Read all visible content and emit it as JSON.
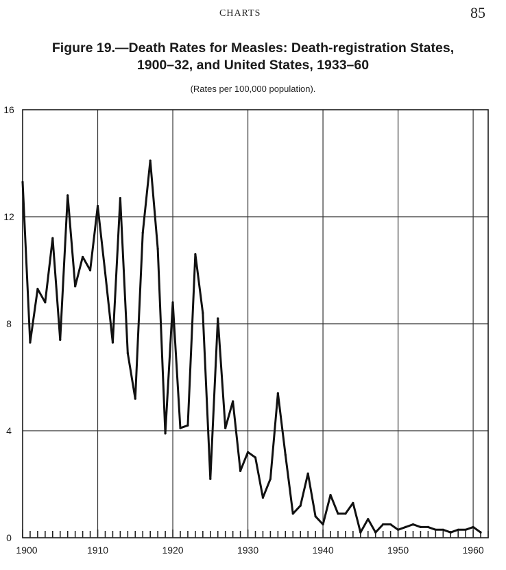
{
  "header": {
    "section_name": "CHARTS",
    "page_number": "85"
  },
  "figure": {
    "title_line1": "Figure 19.—Death Rates for Measles:  Death-registration States,",
    "title_line2": "1900–32, and United States, 1933–60",
    "subtitle": "(Rates per 100,000 population)."
  },
  "chart_data": {
    "type": "line",
    "title": "Figure 19.—Death Rates for Measles:  Death-registration States, 1900–32, and United States, 1933–60",
    "subtitle": "(Rates per 100,000 population).",
    "xlabel": "",
    "ylabel": "",
    "xlim": [
      1900,
      1962
    ],
    "ylim": [
      0,
      16
    ],
    "x_ticks": [
      1900,
      1910,
      1920,
      1930,
      1940,
      1950,
      1960
    ],
    "y_ticks": [
      0,
      4,
      8,
      12,
      16
    ],
    "grid": true,
    "legend": "none",
    "x": [
      1900,
      1901,
      1902,
      1903,
      1904,
      1905,
      1906,
      1907,
      1908,
      1909,
      1910,
      1911,
      1912,
      1913,
      1914,
      1915,
      1916,
      1917,
      1918,
      1919,
      1920,
      1921,
      1922,
      1923,
      1924,
      1925,
      1926,
      1927,
      1928,
      1929,
      1930,
      1931,
      1932,
      1933,
      1934,
      1935,
      1936,
      1937,
      1938,
      1939,
      1940,
      1941,
      1942,
      1943,
      1944,
      1945,
      1946,
      1947,
      1948,
      1949,
      1950,
      1951,
      1952,
      1953,
      1954,
      1955,
      1956,
      1957,
      1958,
      1959,
      1960,
      1961
    ],
    "series": [
      {
        "values": [
          13.3,
          7.3,
          9.3,
          8.8,
          11.2,
          7.4,
          12.8,
          9.4,
          10.5,
          10.0,
          12.4,
          9.9,
          7.3,
          12.7,
          6.9,
          5.2,
          11.4,
          14.1,
          10.8,
          3.9,
          8.8,
          4.1,
          4.2,
          10.6,
          8.4,
          2.2,
          8.2,
          4.1,
          5.1,
          2.5,
          3.2,
          3.0,
          1.5,
          2.2,
          5.4,
          3.1,
          0.9,
          1.2,
          2.4,
          0.8,
          0.5,
          1.6,
          0.9,
          0.9,
          1.3,
          0.2,
          0.7,
          0.2,
          0.5,
          0.5,
          0.3,
          0.4,
          0.5,
          0.4,
          0.4,
          0.3,
          0.3,
          0.2,
          0.3,
          0.3,
          0.4,
          0.2
        ]
      }
    ]
  }
}
